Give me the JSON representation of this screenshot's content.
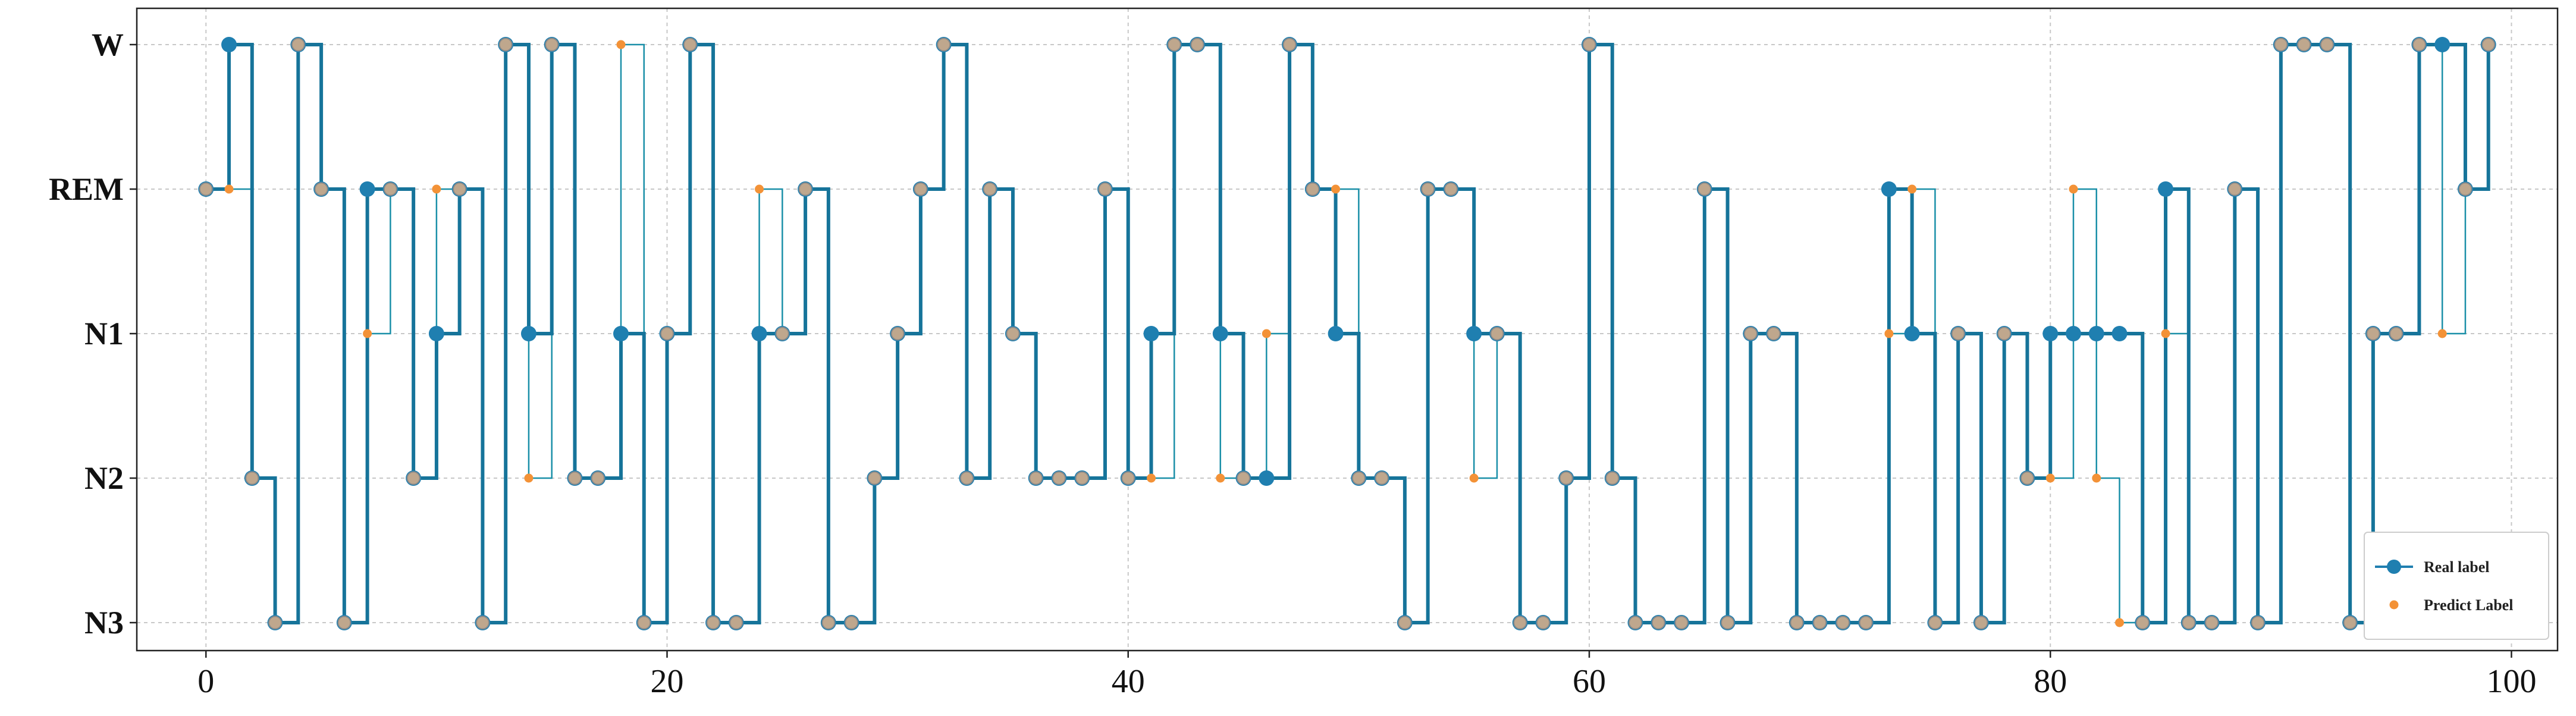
{
  "chart_data": {
    "type": "line",
    "step": "post",
    "title": "",
    "xlabel": "",
    "ylabel": "",
    "xlim": [
      -3,
      102
    ],
    "xticks": [
      0,
      20,
      40,
      60,
      80,
      100
    ],
    "y_categories": [
      "N3",
      "N2",
      "N1",
      "REM",
      "W"
    ],
    "grid": true,
    "legend_position": "bottom-right",
    "series": [
      {
        "name": "Real label",
        "color": "#1f7fb0",
        "marker": "circle",
        "x": [
          0,
          1,
          2,
          3,
          4,
          5,
          6,
          7,
          8,
          9,
          10,
          11,
          12,
          13,
          14,
          15,
          16,
          17,
          18,
          19,
          20,
          21,
          22,
          23,
          24,
          25,
          26,
          27,
          28,
          29,
          30,
          31,
          32,
          33,
          34,
          35,
          36,
          37,
          38,
          39,
          40,
          41,
          42,
          43,
          44,
          45,
          46,
          47,
          48,
          49,
          50,
          51,
          52,
          53,
          54,
          55,
          56,
          57,
          58,
          59,
          60,
          61,
          62,
          63,
          64,
          65,
          66,
          67,
          68,
          69,
          70,
          71,
          72,
          73,
          74,
          75,
          76,
          77,
          78,
          79,
          80,
          81,
          82,
          83,
          84,
          85,
          86,
          87,
          88,
          89,
          90,
          91,
          92,
          93,
          94,
          95,
          96,
          97,
          98,
          99
        ],
        "values": [
          "REM",
          "W",
          "N2",
          "N3",
          "W",
          "REM",
          "N3",
          "REM",
          "REM",
          "N2",
          "N1",
          "REM",
          "N3",
          "W",
          "N1",
          "W",
          "N2",
          "N2",
          "N1",
          "N3",
          "N1",
          "W",
          "N3",
          "N3",
          "N1",
          "N1",
          "REM",
          "N3",
          "N3",
          "N2",
          "N1",
          "REM",
          "W",
          "N2",
          "REM",
          "N1",
          "N2",
          "N2",
          "N2",
          "REM",
          "N2",
          "N1",
          "W",
          "W",
          "N1",
          "N2",
          "N2",
          "W",
          "REM",
          "N1",
          "N2",
          "N2",
          "N3",
          "REM",
          "REM",
          "N1",
          "N1",
          "N3",
          "N3",
          "N2",
          "W",
          "N2",
          "N3",
          "N3",
          "N3",
          "REM",
          "N3",
          "N1",
          "N1",
          "N3",
          "N3",
          "N3",
          "N3",
          "REM",
          "N1",
          "N3",
          "N1",
          "N3",
          "N1",
          "N2",
          "N1",
          "N1",
          "N1",
          "N1",
          "N3",
          "REM",
          "N3",
          "N3",
          "REM",
          "N3",
          "W",
          "W",
          "W",
          "N3",
          "N1",
          "N1",
          "W",
          "W",
          "REM",
          "W"
        ]
      },
      {
        "name": "Predict Label",
        "color": "#f39237",
        "marker": "point",
        "x": [
          0,
          1,
          2,
          3,
          4,
          5,
          6,
          7,
          8,
          9,
          10,
          11,
          12,
          13,
          14,
          15,
          16,
          17,
          18,
          19,
          20,
          21,
          22,
          23,
          24,
          25,
          26,
          27,
          28,
          29,
          30,
          31,
          32,
          33,
          34,
          35,
          36,
          37,
          38,
          39,
          40,
          41,
          42,
          43,
          44,
          45,
          46,
          47,
          48,
          49,
          50,
          51,
          52,
          53,
          54,
          55,
          56,
          57,
          58,
          59,
          60,
          61,
          62,
          63,
          64,
          65,
          66,
          67,
          68,
          69,
          70,
          71,
          72,
          73,
          74,
          75,
          76,
          77,
          78,
          79,
          80,
          81,
          82,
          83,
          84,
          85,
          86,
          87,
          88,
          89,
          90,
          91,
          92,
          93,
          94,
          95,
          96,
          97,
          98,
          99
        ],
        "values": [
          "REM",
          "REM",
          "N2",
          "N3",
          "W",
          "REM",
          "N3",
          "N1",
          "REM",
          "N2",
          "REM",
          "REM",
          "N3",
          "W",
          "N2",
          "W",
          "N2",
          "N2",
          "W",
          "N3",
          "N1",
          "W",
          "N3",
          "N3",
          "REM",
          "N1",
          "REM",
          "N3",
          "N3",
          "N2",
          "N1",
          "REM",
          "W",
          "N2",
          "REM",
          "N1",
          "N2",
          "N2",
          "N2",
          "REM",
          "N2",
          "N2",
          "W",
          "W",
          "N2",
          "N2",
          "N1",
          "W",
          "REM",
          "REM",
          "N2",
          "N2",
          "N3",
          "REM",
          "REM",
          "N2",
          "N1",
          "N3",
          "N3",
          "N2",
          "W",
          "N2",
          "N3",
          "N3",
          "N3",
          "REM",
          "N3",
          "N1",
          "N1",
          "N3",
          "N3",
          "N3",
          "N3",
          "N1",
          "REM",
          "N3",
          "N1",
          "N3",
          "N1",
          "N2",
          "N2",
          "REM",
          "N2",
          "N3",
          "N3",
          "N1",
          "N3",
          "N3",
          "REM",
          "N3",
          "W",
          "W",
          "W",
          "N3",
          "N1",
          "N1",
          "W",
          "N1",
          "REM",
          "W"
        ]
      }
    ]
  }
}
